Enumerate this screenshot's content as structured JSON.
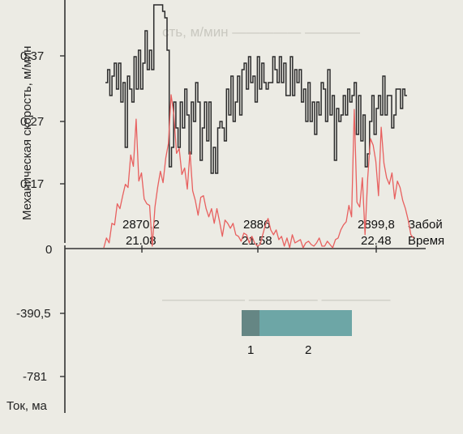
{
  "chart_data": [
    {
      "type": "line",
      "ylabel": "Механическая скорость, м/мин",
      "y_ticks": [
        "0,37",
        "0,27",
        "0,17"
      ],
      "y_tick_values": [
        0.37,
        0.27,
        0.17
      ],
      "ylim": [
        0.15,
        0.45
      ],
      "step": true,
      "series": [
        {
          "values": [
            0.33,
            0.35,
            0.31,
            0.34,
            0.36,
            0.32,
            0.36,
            0.3,
            0.33,
            0.23,
            0.34,
            0.32,
            0.3,
            0.37,
            0.32,
            0.38,
            0.32,
            0.36,
            0.41,
            0.35,
            0.38,
            0.35,
            0.45,
            0.45,
            0.45,
            0.45,
            0.44,
            0.43,
            0.38,
            0.2,
            0.23,
            0.3,
            0.26,
            0.23,
            0.3,
            0.26,
            0.32,
            0.28,
            0.22,
            0.3,
            0.27,
            0.33,
            0.3,
            0.21,
            0.26,
            0.3,
            0.24,
            0.3,
            0.19,
            0.23,
            0.19,
            0.26,
            0.27,
            0.26,
            0.24,
            0.32,
            0.28,
            0.34,
            0.27,
            0.3,
            0.34,
            0.28,
            0.35,
            0.36,
            0.32,
            0.37,
            0.33,
            0.34,
            0.3,
            0.37,
            0.32,
            0.36,
            0.33,
            0.32,
            0.33,
            0.33,
            0.37,
            0.35,
            0.33,
            0.37,
            0.33,
            0.36,
            0.31,
            0.31,
            0.37,
            0.31,
            0.35,
            0.33,
            0.35,
            0.3,
            0.32,
            0.27,
            0.33,
            0.27,
            0.3,
            0.25,
            0.3,
            0.28,
            0.33,
            0.32,
            0.27,
            0.35,
            0.28,
            0.31,
            0.21,
            0.29,
            0.27,
            0.28,
            0.31,
            0.28,
            0.32,
            0.3,
            0.31,
            0.33,
            0.25,
            0.31,
            0.24,
            0.28,
            0.2,
            0.22,
            0.27,
            0.31,
            0.25,
            0.29,
            0.31,
            0.28,
            0.34,
            0.28,
            0.31,
            0.31,
            0.26,
            0.28,
            0.32,
            0.32,
            0.29,
            0.32,
            0.31
          ]
        }
      ],
      "annotations": [
        {
          "depth": "2870,2",
          "time": "21.08"
        },
        {
          "depth": "2886",
          "time": "21.58"
        },
        {
          "depth": "2899,8",
          "time": "22.48"
        }
      ],
      "axis_labels_right": [
        "Забой",
        "Время"
      ]
    },
    {
      "type": "line",
      "ylabel": "Ток, ма",
      "y_ticks": [
        "0",
        "-390,5",
        "-781"
      ],
      "y_tick_values": [
        0,
        -390.5,
        -781
      ],
      "ylim": [
        -980,
        0
      ],
      "series": [
        {
          "values": [
            -10,
            -70,
            -40,
            -160,
            -150,
            -280,
            -250,
            -330,
            -400,
            -380,
            -580,
            -510,
            -800,
            -420,
            -470,
            -310,
            -280,
            -270,
            -20,
            -260,
            -380,
            -480,
            -410,
            -560,
            -650,
            -950,
            -830,
            -590,
            -620,
            -460,
            -500,
            -370,
            -600,
            -360,
            -300,
            -210,
            -320,
            -330,
            -250,
            -200,
            -250,
            -160,
            -250,
            -170,
            -80,
            -180,
            -160,
            -130,
            -160,
            -90,
            -80,
            -50,
            -100,
            -90,
            -40,
            -80,
            -40,
            -20,
            -30,
            -90,
            -150,
            -190,
            -120,
            -90,
            -120,
            -60,
            -80,
            -20,
            -70,
            -10,
            -90,
            -40,
            -50,
            -60,
            -10,
            -40,
            -50,
            -30,
            -20,
            -40,
            -70,
            -20,
            -20,
            -50,
            -30,
            -10,
            -60,
            -70,
            -120,
            -150,
            -170,
            -270,
            -200,
            -860,
            -290,
            -260,
            -440,
            -90,
            -440,
            -680,
            -640,
            -540,
            -330,
            -750,
            -530,
            -440,
            -400,
            -470,
            -310,
            -420,
            -380,
            -300,
            -250,
            -180,
            -90,
            -70
          ]
        }
      ],
      "legend_box": {
        "start_label": "1",
        "end_label": "2",
        "color": "#6da6a6"
      }
    }
  ]
}
